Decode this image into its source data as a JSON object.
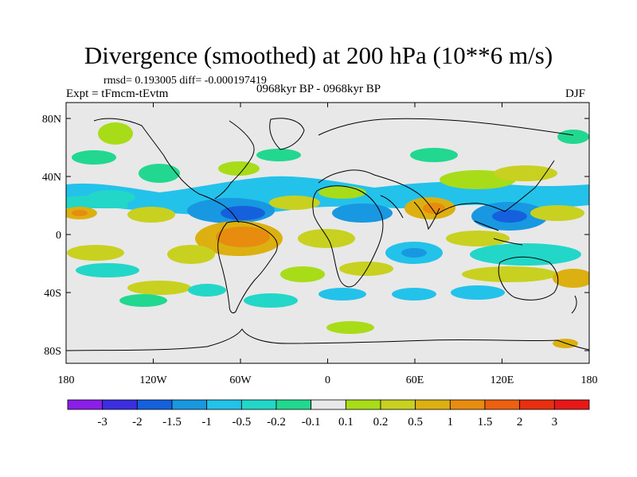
{
  "title": "Divergence (smoothed) at 200 hPa (10**6 m/s)",
  "stats": "rmsd= 0.193005 diff= -0.000197419",
  "experiment": "Expt = tFmcm-tEvtm",
  "period": "0968kyr BP - 0968kyr BP",
  "season": "DJF",
  "lat_labels": [
    "80N",
    "40N",
    "0",
    "40S",
    "80S"
  ],
  "lat_values": [
    80,
    40,
    0,
    -40,
    -80
  ],
  "lon_labels": [
    "180",
    "120W",
    "60W",
    "0",
    "60E",
    "120E",
    "180"
  ],
  "lon_values": [
    -180,
    -120,
    -60,
    0,
    60,
    120,
    180
  ],
  "colorbar": {
    "labels": [
      "-3",
      "-2",
      "-1.5",
      "-1",
      "-0.5",
      "-0.2",
      "-0.1",
      "0.1",
      "0.2",
      "0.5",
      "1",
      "1.5",
      "2",
      "3"
    ],
    "colors": [
      "#8a20e8",
      "#3a2ee0",
      "#1560dc",
      "#1898e0",
      "#22c2ea",
      "#22d6c8",
      "#22d890",
      "#e8e8e8",
      "#a8dc18",
      "#c8d020",
      "#dcb010",
      "#e88c10",
      "#ec6010",
      "#e83010",
      "#e81818"
    ]
  },
  "colors": {
    "ocean_bg": "#e8e8e8",
    "neutral": "#e8e8e8",
    "coast": "#000000"
  }
}
